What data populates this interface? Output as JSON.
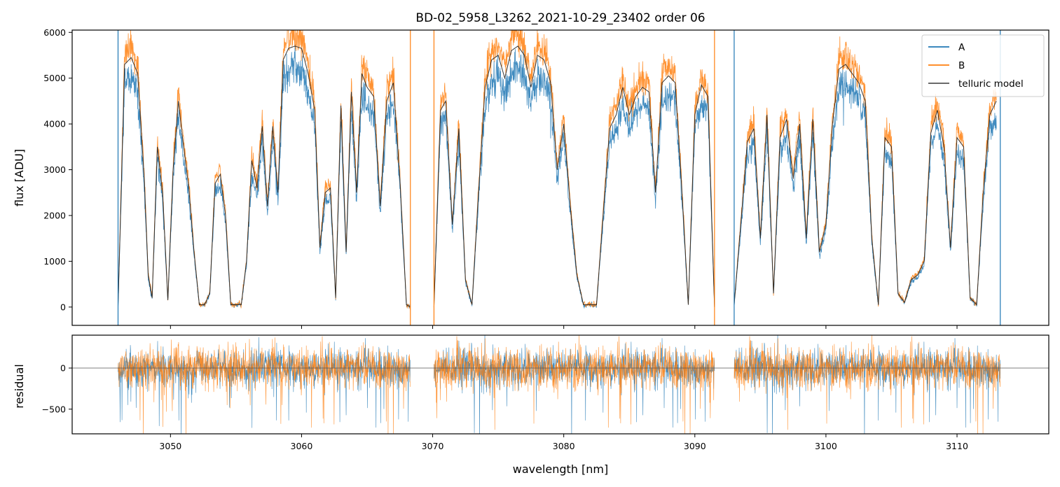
{
  "chart_data": [
    {
      "type": "line",
      "title": "BD-02_5958_L3262_2021-10-29_23402  order 06",
      "xlabel": "",
      "ylabel": "flux [ADU]",
      "xlim": [
        3042.5,
        3117.0
      ],
      "ylim": [
        -400,
        6050
      ],
      "yticks": [
        0,
        1000,
        2000,
        3000,
        4000,
        5000,
        6000
      ],
      "xticks": [
        3050,
        3060,
        3070,
        3080,
        3090,
        3100,
        3110
      ],
      "legend_position": "top-right",
      "grid": false,
      "segments": [
        [
          3046.0,
          3068.3
        ],
        [
          3070.1,
          3091.5
        ],
        [
          3093.0,
          3113.3
        ]
      ],
      "spikes": [
        {
          "series": "A",
          "x": 3046.0
        },
        {
          "series": "A",
          "x": 3093.0
        },
        {
          "series": "A",
          "x": 3113.3
        },
        {
          "series": "B",
          "x": 3070.1
        },
        {
          "series": "B",
          "x": 3068.3
        },
        {
          "series": "B",
          "x": 3091.5
        }
      ],
      "series": [
        {
          "name": "A",
          "color": "#1f77b4"
        },
        {
          "name": "B",
          "color": "#ff7f0e"
        },
        {
          "name": "telluric model",
          "color": "#555555"
        }
      ],
      "x": [
        3046.0,
        3046.5,
        3047.0,
        3047.5,
        3048.0,
        3048.3,
        3048.6,
        3049.0,
        3049.4,
        3049.8,
        3050.2,
        3050.6,
        3051.0,
        3051.4,
        3051.8,
        3052.2,
        3052.6,
        3053.0,
        3053.4,
        3053.8,
        3054.2,
        3054.6,
        3055.0,
        3055.4,
        3055.8,
        3056.2,
        3056.6,
        3057.0,
        3057.4,
        3057.8,
        3058.2,
        3058.6,
        3059.0,
        3059.5,
        3060.0,
        3060.5,
        3061.0,
        3061.4,
        3061.8,
        3062.2,
        3062.6,
        3063.0,
        3063.4,
        3063.8,
        3064.2,
        3064.6,
        3065.0,
        3065.5,
        3066.0,
        3066.5,
        3067.0,
        3067.5,
        3068.0,
        3068.3,
        3070.1,
        3070.6,
        3071.0,
        3071.5,
        3072.0,
        3072.5,
        3073.0,
        3073.5,
        3074.0,
        3074.5,
        3075.0,
        3075.5,
        3076.0,
        3076.5,
        3077.0,
        3077.5,
        3078.0,
        3078.5,
        3079.0,
        3079.5,
        3080.0,
        3080.5,
        3081.0,
        3081.5,
        3082.0,
        3082.5,
        3083.0,
        3083.5,
        3084.0,
        3084.5,
        3085.0,
        3085.5,
        3086.0,
        3086.5,
        3087.0,
        3087.5,
        3088.0,
        3088.5,
        3089.0,
        3089.5,
        3090.0,
        3090.5,
        3091.0,
        3091.5,
        3093.0,
        3093.5,
        3094.0,
        3094.5,
        3095.0,
        3095.5,
        3096.0,
        3096.5,
        3097.0,
        3097.5,
        3098.0,
        3098.5,
        3099.0,
        3099.5,
        3100.0,
        3100.5,
        3101.0,
        3101.5,
        3102.0,
        3102.5,
        3103.0,
        3103.5,
        3104.0,
        3104.5,
        3105.0,
        3105.5,
        3106.0,
        3106.5,
        3107.0,
        3107.5,
        3108.0,
        3108.5,
        3109.0,
        3109.5,
        3110.0,
        3110.5,
        3111.0,
        3111.5,
        3112.0,
        3112.5,
        3113.0,
        3113.3
      ],
      "model": [
        0,
        5300,
        5450,
        5100,
        2800,
        700,
        200,
        3500,
        2500,
        150,
        3000,
        4500,
        3500,
        2600,
        1200,
        50,
        50,
        300,
        2700,
        2900,
        2000,
        50,
        50,
        50,
        1000,
        3200,
        2600,
        3950,
        2200,
        3950,
        2500,
        5400,
        5650,
        5700,
        5650,
        5100,
        4300,
        1300,
        2500,
        2600,
        200,
        4400,
        1200,
        4700,
        2500,
        5100,
        4800,
        4600,
        2200,
        4500,
        4900,
        2800,
        50,
        0,
        0,
        4300,
        4500,
        1800,
        3900,
        600,
        50,
        2500,
        4800,
        5400,
        5500,
        5000,
        5600,
        5700,
        5500,
        4800,
        5500,
        5400,
        4900,
        3000,
        4000,
        2200,
        700,
        50,
        50,
        50,
        2000,
        3900,
        4200,
        4800,
        4200,
        4600,
        4800,
        4700,
        2500,
        4900,
        5050,
        4900,
        2600,
        50,
        4200,
        4850,
        4600,
        0,
        50,
        1800,
        3600,
        3900,
        1500,
        4200,
        300,
        3700,
        4100,
        2800,
        4000,
        1500,
        4100,
        1200,
        1800,
        4000,
        5200,
        5300,
        5100,
        4900,
        4500,
        1500,
        50,
        3700,
        3500,
        300,
        100,
        600,
        700,
        1000,
        3800,
        4300,
        3500,
        1300,
        3700,
        3500,
        200,
        50,
        2500,
        4200,
        4500
      ]
    },
    {
      "type": "line",
      "title": "",
      "xlabel": "wavelength [nm]",
      "ylabel": "residual",
      "xlim": [
        3042.5,
        3117.0
      ],
      "ylim": [
        -800,
        400
      ],
      "yticks": [
        -500,
        0
      ],
      "xticks": [
        3050,
        3060,
        3070,
        3080,
        3090,
        3100,
        3110
      ],
      "segments": [
        [
          3046.0,
          3068.3
        ],
        [
          3070.1,
          3091.5
        ],
        [
          3093.0,
          3113.3
        ]
      ],
      "series": [
        {
          "name": "A",
          "color": "#1f77b4"
        },
        {
          "name": "B",
          "color": "#ff7f0e"
        }
      ],
      "baseline": 0
    }
  ],
  "tick_labels": {
    "x": [
      "3050",
      "3060",
      "3070",
      "3080",
      "3090",
      "3100",
      "3110"
    ],
    "flux_y": [
      "0",
      "1000",
      "2000",
      "3000",
      "4000",
      "5000",
      "6000"
    ],
    "residual_y": [
      "0",
      "−500"
    ]
  },
  "legend": {
    "a": "A",
    "b": "B",
    "model": "telluric model"
  }
}
